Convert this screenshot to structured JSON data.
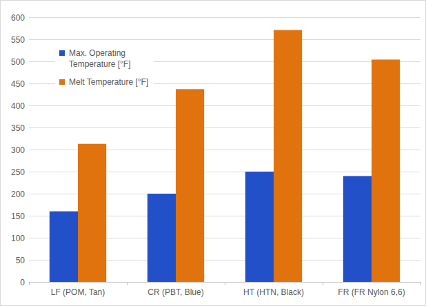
{
  "chart_data": {
    "type": "bar",
    "categories": [
      "LF (POM, Tan)",
      "CR (PBT, Blue)",
      "HT (HTN, Black)",
      "FR (FR Nylon 6,6)"
    ],
    "series": [
      {
        "name": "Max. Operating Temperature [°F]",
        "color": "#2250c8",
        "values": [
          160,
          200,
          250,
          240
        ]
      },
      {
        "name": "Melt Temperature [°F]",
        "color": "#e1730f",
        "values": [
          313,
          437,
          571,
          504
        ]
      }
    ],
    "ylim": [
      0,
      600
    ],
    "yticks": [
      0,
      50,
      100,
      150,
      200,
      250,
      300,
      350,
      400,
      450,
      500,
      550,
      600
    ],
    "grid": true,
    "legend": "upper left"
  }
}
